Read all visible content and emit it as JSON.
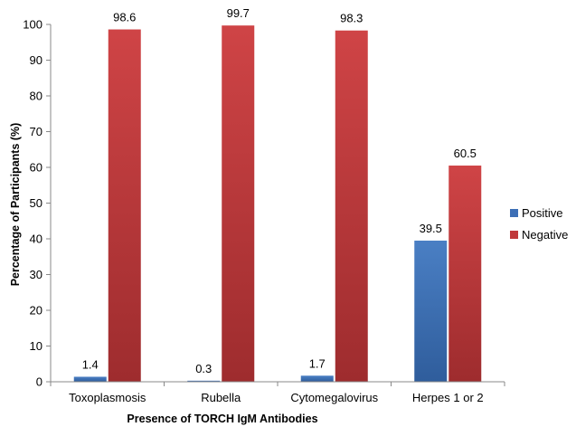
{
  "chart_data": {
    "type": "bar",
    "title": "",
    "xlabel": "Presence of TORCH IgM Antibodies",
    "ylabel": "Percentage of Participants (%)",
    "ylim": [
      0,
      100
    ],
    "yticks": [
      "0",
      "10",
      "20",
      "30",
      "40",
      "50",
      "60",
      "70",
      "80",
      "90",
      "100"
    ],
    "categories": [
      "Toxoplasmosis",
      "Rubella",
      "Cytomegalovirus",
      "Herpes 1 or 2"
    ],
    "series": [
      {
        "name": "Positive",
        "color": "#3d6fb6",
        "values": [
          1.4,
          0.3,
          1.7,
          39.5
        ],
        "labels": [
          "1.4",
          "0.3",
          "1.7",
          "39.5"
        ]
      },
      {
        "name": "Negative",
        "color": "#c0393b",
        "values": [
          98.6,
          99.7,
          98.3,
          60.5
        ],
        "labels": [
          "98.6",
          "99.7",
          "98.3",
          "60.5"
        ]
      }
    ],
    "grid": false,
    "legend_position": "right"
  }
}
